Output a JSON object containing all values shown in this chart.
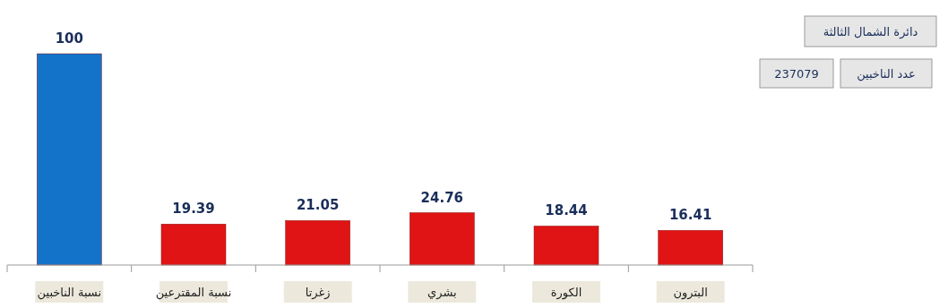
{
  "chart_data": {
    "type": "bar",
    "title": "دائرة الشمال الثالثة",
    "categories": [
      "نسبة الناخبين",
      "نسبة المقترعين",
      "زغرتا",
      "بشري",
      "الكورة",
      "البترون"
    ],
    "values": [
      100,
      19.39,
      21.05,
      24.76,
      18.44,
      16.41
    ],
    "colors": [
      "#1273c9",
      "#e01414",
      "#e01414",
      "#e01414",
      "#e01414",
      "#e01414"
    ],
    "data_labels": true,
    "annotations": [
      "عدد الناخبين",
      "237079"
    ]
  }
}
